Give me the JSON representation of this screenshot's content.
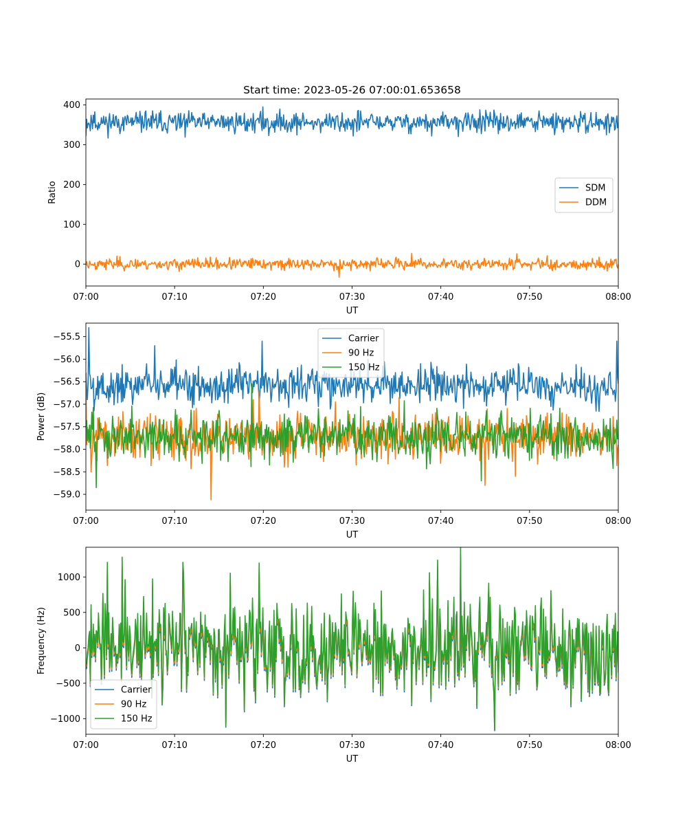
{
  "figure": {
    "title": "Start time: 2023-05-26 07:00:01.653658"
  },
  "colors": {
    "c0": "#1f77b4",
    "c1": "#ff7f0e",
    "c2": "#2ca02c"
  },
  "chart_data": [
    {
      "type": "line",
      "ylabel": "Ratio",
      "xlabel": "UT",
      "xlim": [
        "07:00",
        "08:00"
      ],
      "ylim": [
        -55,
        415
      ],
      "xticks": [
        "07:00",
        "07:10",
        "07:20",
        "07:30",
        "07:40",
        "07:50",
        "08:00"
      ],
      "yticks": [
        0,
        100,
        200,
        300,
        400
      ],
      "legend": "center-right",
      "series": [
        {
          "name": "SDM",
          "color": "#1f77b4",
          "mean": 356,
          "noise": 13,
          "seed": 11,
          "spikes": [
            [
              0.0,
              322
            ],
            [
              0.0168,
              383
            ],
            [
              0.112,
              385
            ],
            [
              0.187,
              319
            ],
            [
              0.332,
              395
            ],
            [
              0.343,
              323
            ],
            [
              0.502,
              322
            ],
            [
              0.51,
              385
            ],
            [
              0.65,
              322
            ],
            [
              0.74,
              388
            ],
            [
              0.88,
              325
            ],
            [
              0.983,
              330
            ],
            [
              1.0,
              355
            ]
          ]
        },
        {
          "name": "DDM",
          "color": "#ff7f0e",
          "mean": 0,
          "noise": 7,
          "seed": 23,
          "spikes": [
            [
              0.058,
              20
            ],
            [
              0.476,
              -33
            ],
            [
              0.612,
              27
            ],
            [
              0.809,
              26
            ],
            [
              0.867,
              21
            ],
            [
              0.997,
              -5
            ]
          ]
        }
      ]
    },
    {
      "type": "line",
      "ylabel": "Power (dB)",
      "xlabel": "UT",
      "xlim": [
        "07:00",
        "08:00"
      ],
      "ylim": [
        -59.35,
        -55.2
      ],
      "xticks": [
        "07:00",
        "07:10",
        "07:20",
        "07:30",
        "07:40",
        "07:50",
        "08:00"
      ],
      "yticks": [
        -59.0,
        -58.5,
        -58.0,
        -57.5,
        -57.0,
        -56.5,
        -56.0,
        -55.5
      ],
      "ytick_labels": [
        "−59.0",
        "−58.5",
        "−58.0",
        "−57.5",
        "−57.0",
        "−56.5",
        "−56.0",
        "−55.5"
      ],
      "legend": "top-center",
      "series": [
        {
          "name": "Carrier",
          "color": "#1f77b4",
          "mean": -56.58,
          "noise": 0.22,
          "seed": 5,
          "spikes": [
            [
              0.0,
              -56.3
            ],
            [
              0.005,
              -55.3
            ],
            [
              0.017,
              -56.9
            ],
            [
              0.13,
              -55.7
            ],
            [
              0.331,
              -55.6
            ],
            [
              0.997,
              -55.6
            ],
            [
              1.0,
              -56.55
            ]
          ]
        },
        {
          "name": "90 Hz",
          "color": "#ff7f0e",
          "mean": -57.72,
          "noise": 0.26,
          "seed": 31,
          "spikes": [
            [
              0.0,
              -56.3
            ],
            [
              0.01,
              -58.5
            ],
            [
              0.235,
              -59.12
            ],
            [
              0.315,
              -56.9
            ],
            [
              0.326,
              -56.7
            ],
            [
              0.469,
              -56.95
            ],
            [
              0.589,
              -56.85
            ],
            [
              0.749,
              -58.8
            ],
            [
              0.807,
              -58.6
            ],
            [
              1.0,
              -57.9
            ]
          ]
        },
        {
          "name": "150 Hz",
          "color": "#2ca02c",
          "mean": -57.7,
          "noise": 0.26,
          "seed": 47,
          "spikes": [
            [
              0.0,
              -57.4
            ],
            [
              0.0195,
              -58.85
            ],
            [
              0.311,
              -56.55
            ],
            [
              0.743,
              -58.7
            ],
            [
              1.0,
              -57.7
            ]
          ]
        }
      ]
    },
    {
      "type": "line",
      "ylabel": "Frequency (Hz)",
      "xlabel": "UT",
      "xlim": [
        "07:00",
        "08:00"
      ],
      "ylim": [
        -1220,
        1420
      ],
      "xticks": [
        "07:00",
        "07:10",
        "07:20",
        "07:30",
        "07:40",
        "07:50",
        "08:00"
      ],
      "yticks": [
        -1000,
        -500,
        0,
        500,
        1000
      ],
      "ytick_labels": [
        "−1000",
        "−500",
        "0",
        "500",
        "1000"
      ],
      "legend": "lower-left",
      "shared_base": {
        "mean": 0,
        "noise": 330,
        "seed": 77,
        "spikes": [
          [
            0.04,
            1150
          ],
          [
            0.068,
            1220
          ],
          [
            0.182,
            1150
          ],
          [
            0.263,
            -1050
          ],
          [
            0.325,
            1140
          ],
          [
            0.66,
            1180
          ],
          [
            0.646,
            1010
          ],
          [
            0.704,
            1350
          ],
          [
            0.768,
            -1100
          ],
          [
            1.0,
            -280
          ]
        ]
      },
      "series": [
        {
          "name": "Carrier",
          "color": "#1f77b4",
          "offset": -70,
          "scale": 1.0
        },
        {
          "name": "90 Hz",
          "color": "#ff7f0e",
          "offset": -40,
          "scale": 1.0
        },
        {
          "name": "150 Hz",
          "color": "#2ca02c",
          "offset": 0,
          "scale": 1.05
        }
      ]
    }
  ]
}
